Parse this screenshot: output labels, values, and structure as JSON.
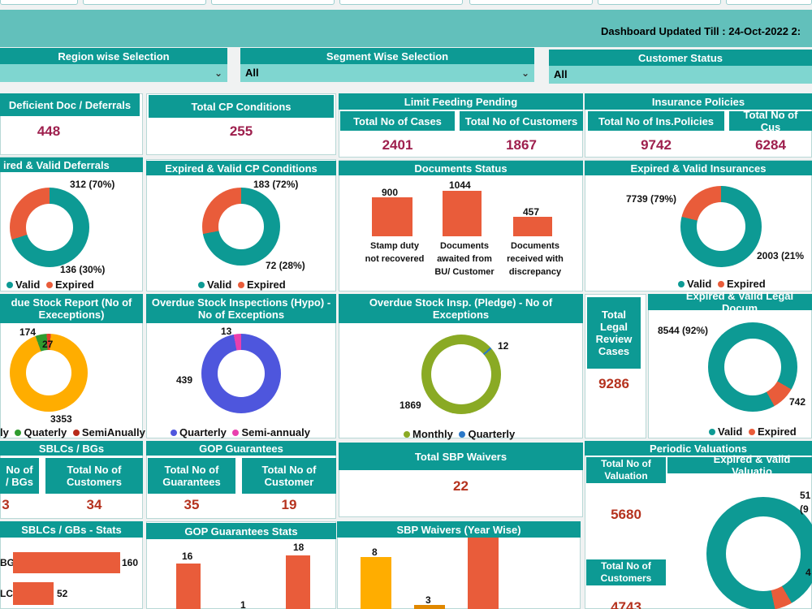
{
  "header": {
    "updated_text": "Dashboard Updated Till : 24-Oct-2022  2:",
    "background_color": "#62c0bb"
  },
  "filters": {
    "region": {
      "title": "Region wise Selection",
      "value": ""
    },
    "segment": {
      "title": "Segment Wise Selection",
      "value": "All"
    },
    "customer_status": {
      "title": "Customer Status",
      "value": "All"
    }
  },
  "colors": {
    "teal": "#0d9a94",
    "orange": "#e95c3a",
    "kpi": "#9e1f4d",
    "amber": "#ffad00",
    "green": "#8aaa24",
    "blue": "#4e56dd",
    "pink": "#e93fae"
  },
  "kpis": {
    "deficient_doc": {
      "title": "Deficient Doc / Deferrals",
      "value": "448"
    },
    "total_cp": {
      "title": "Total CP Conditions",
      "value": "255"
    },
    "limit_feeding": {
      "title": "Limit Feeding Pending",
      "cases_title": "Total No of Cases",
      "cases_value": "2401",
      "customers_title": "Total No of Customers",
      "customers_value": "1867"
    },
    "insurance": {
      "title": "Insurance Policies",
      "policies_title": "Total No of Ins.Policies",
      "policies_value": "9742",
      "customers_title": "Total No of Cus",
      "customers_value": "6284"
    },
    "legal_review": {
      "title": "Total Legal Review Cases",
      "value": "9286"
    },
    "sblc": {
      "title": "SBLCs / BGs",
      "count_title": "No of / BGs",
      "count_value": "3",
      "customers_title": "Total No of Customers",
      "customers_value": "34"
    },
    "gop": {
      "title": "GOP Guarantees",
      "guarantees_title": "Total No of Guarantees",
      "guarantees_value": "35",
      "customer_title": "Total No of Customer",
      "customer_value": "19"
    },
    "sbp_waivers": {
      "title": "Total SBP Waivers",
      "value": "22"
    },
    "periodic": {
      "title": "Periodic Valuations",
      "valuation_title": "Total No of Valuation",
      "valuation_value": "5680",
      "customers_title": "Total No of Customers",
      "customers_value": "4743"
    }
  },
  "charts": {
    "deferrals": {
      "title": "ired & Valid Deferrals",
      "valid_label": "312 (70%)",
      "expired_label": "136 (30%)",
      "legend": [
        "Valid",
        "Expired"
      ]
    },
    "cp_conditions": {
      "title": "Expired & Valid CP Conditions",
      "valid_label": "183 (72%)",
      "expired_label": "72 (28%)",
      "legend": [
        "Valid",
        "Expired"
      ]
    },
    "documents_status": {
      "title": "Documents Status",
      "bars": [
        {
          "value": "900",
          "label": "Stamp duty not recovered"
        },
        {
          "value": "1044",
          "label": "Documents awaited from BU/ Customer"
        },
        {
          "value": "457",
          "label": "Documents received with discrepancy"
        }
      ]
    },
    "insurances": {
      "title": "Expired & Valid Insurances",
      "valid_label": "7739 (79%)",
      "expired_label": "2003 (21%",
      "legend": [
        "Valid",
        "Expired"
      ]
    },
    "overdue_stock_report": {
      "title": "due Stock Report (No of Execeptions)",
      "labels": [
        "174",
        "27",
        "3353"
      ],
      "legend": [
        "ly",
        "Quaterly",
        "SemiAnually"
      ]
    },
    "overdue_hypo": {
      "title": "Overdue Stock Inspections (Hypo) - No of Exceptions",
      "labels": [
        "13",
        "439"
      ],
      "legend": [
        "Quarterly",
        "Semi-annualy"
      ]
    },
    "overdue_pledge": {
      "title": "Overdue Stock Insp. (Pledge) - No of Exceptions",
      "labels": [
        "12",
        "1869"
      ],
      "legend": [
        "Monthly",
        "Quarterly"
      ]
    },
    "legal_docs": {
      "title": "Expired & Valid Legal Docum",
      "valid_label": "8544 (92%)",
      "expired_label": "742",
      "legend": [
        "Valid",
        "Expired"
      ]
    },
    "sblc_stats": {
      "title": "SBLCs / GBs - Stats",
      "bars": [
        {
          "name": "BG",
          "value": "160"
        },
        {
          "name": "LC",
          "value": "52"
        }
      ]
    },
    "gop_stats": {
      "title": "GOP Guarantees Stats",
      "values": [
        "16",
        "1",
        "18"
      ]
    },
    "sbp_year": {
      "title": "SBP Waivers (Year Wise)",
      "values": [
        "8",
        "3",
        "10"
      ]
    },
    "valuations": {
      "title": "Expired & Valid Valuatio",
      "labels": [
        "51",
        "(9",
        "4"
      ]
    }
  }
}
